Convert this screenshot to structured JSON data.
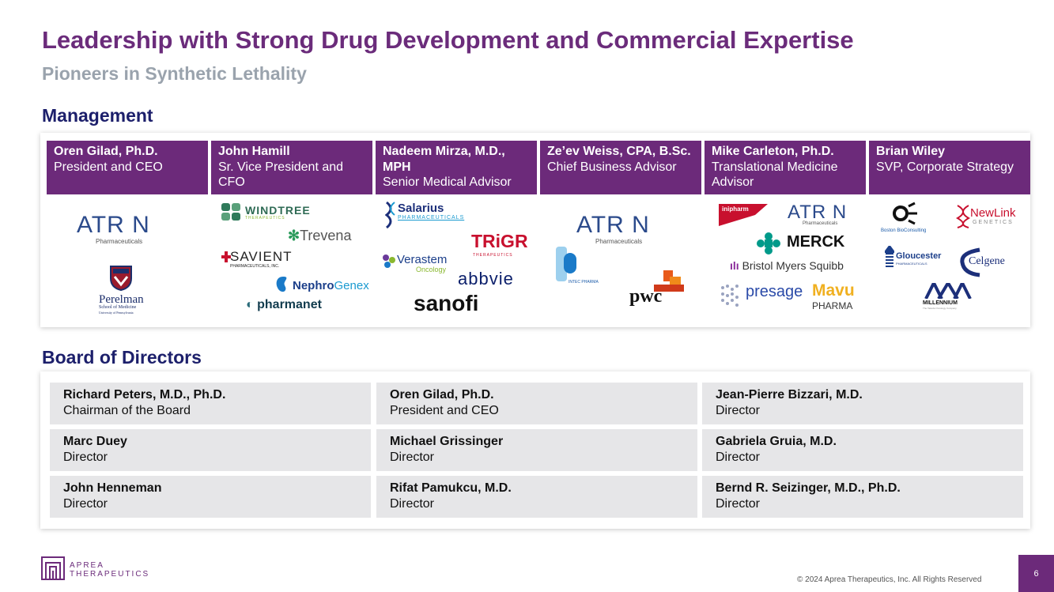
{
  "title": "Leadership with Strong Drug Development and Commercial Expertise",
  "subtitle": "Pioneers in Synthetic Lethality",
  "management": {
    "heading": "Management",
    "people": [
      {
        "name": "Oren Gilad, Ph.D.",
        "role": "President and CEO"
      },
      {
        "name": "John Hamill",
        "role": "Sr. Vice President and CFO"
      },
      {
        "name": "Nadeem Mirza, M.D., MPH",
        "role": "Senior Medical Advisor"
      },
      {
        "name": "Ze’ev Weiss, CPA, B.Sc.",
        "role": "Chief Business Advisor"
      },
      {
        "name": "Mike Carleton, Ph.D.",
        "role": "Translational Medicine Advisor"
      },
      {
        "name": "Brian Wiley",
        "role": "SVP, Corporate Strategy"
      }
    ]
  },
  "logos": {
    "atrin": "ATR N",
    "atrin_sub": "Pharmaceuticals",
    "perelman": "Perelman",
    "perelman_sub": "School of Medicine",
    "perelman_sub2": "University of Pennsylvania",
    "windtree": "WINDTREE",
    "windtree_sub": "THERAPEUTICS",
    "trevena": "Trevena",
    "savient": "SAVIENT",
    "savient_sub": "PHARMACEUTICALS, INC.",
    "nephrogenex_a": "Nephro",
    "nephrogenex_b": "Genex",
    "pharmanet": "pharmanet",
    "salarius": "Salarius",
    "salarius_sub": "PHARMACEUTICALS",
    "trigr": "TRiGR",
    "trigr_sub": "THERAPEUTICS",
    "verastem": "Verastem",
    "verastem_sub": "Oncology",
    "abbvie": "abbvie",
    "sanofi": "sanofi",
    "intec": "INTEC PHARMA",
    "pwc": "pwc",
    "inipharm": "inipharm",
    "merck": "MERCK",
    "bms": "Bristol Myers Squibb",
    "presage": "presage",
    "mavu": "Mavu",
    "mavu_sub": "PHARMA",
    "boston": "Boston BioConsulting",
    "newlink": "NewLink",
    "newlink_sub": "GENETICS",
    "gloucester": "Gloucester",
    "gloucester_sub": "PHARMACEUTICALS",
    "celgene": "Celgene",
    "millennium": "MILLENNIUM",
    "millennium_sub": "The Takeda Oncology Company"
  },
  "board": {
    "heading": "Board of Directors",
    "members": [
      {
        "name": "Richard Peters, M.D., Ph.D.",
        "role": "Chairman of the Board"
      },
      {
        "name": "Oren Gilad, Ph.D.",
        "role": "President and CEO"
      },
      {
        "name": "Jean-Pierre Bizzari, M.D.",
        "role": "Director"
      },
      {
        "name": "Marc Duey",
        "role": "Director"
      },
      {
        "name": "Michael Grissinger",
        "role": "Director"
      },
      {
        "name": "Gabriela Gruia, M.D.",
        "role": "Director"
      },
      {
        "name": "John Henneman",
        "role": "Director"
      },
      {
        "name": "Rifat Pamukcu, M.D.",
        "role": "Director"
      },
      {
        "name": "Bernd R. Seizinger, M.D., Ph.D.",
        "role": "Director"
      }
    ]
  },
  "footer": {
    "brand_line1": "APREA",
    "brand_line2": "THERAPEUTICS",
    "copyright": "© 2024 Aprea Therapeutics, Inc. All Rights Reserved",
    "page_number": "6"
  },
  "colors": {
    "accent": "#6c2a7a",
    "heading_navy": "#1c1f6b",
    "subtitle_gray": "#9aa3ad",
    "cell_bg": "#e6e6e8"
  }
}
